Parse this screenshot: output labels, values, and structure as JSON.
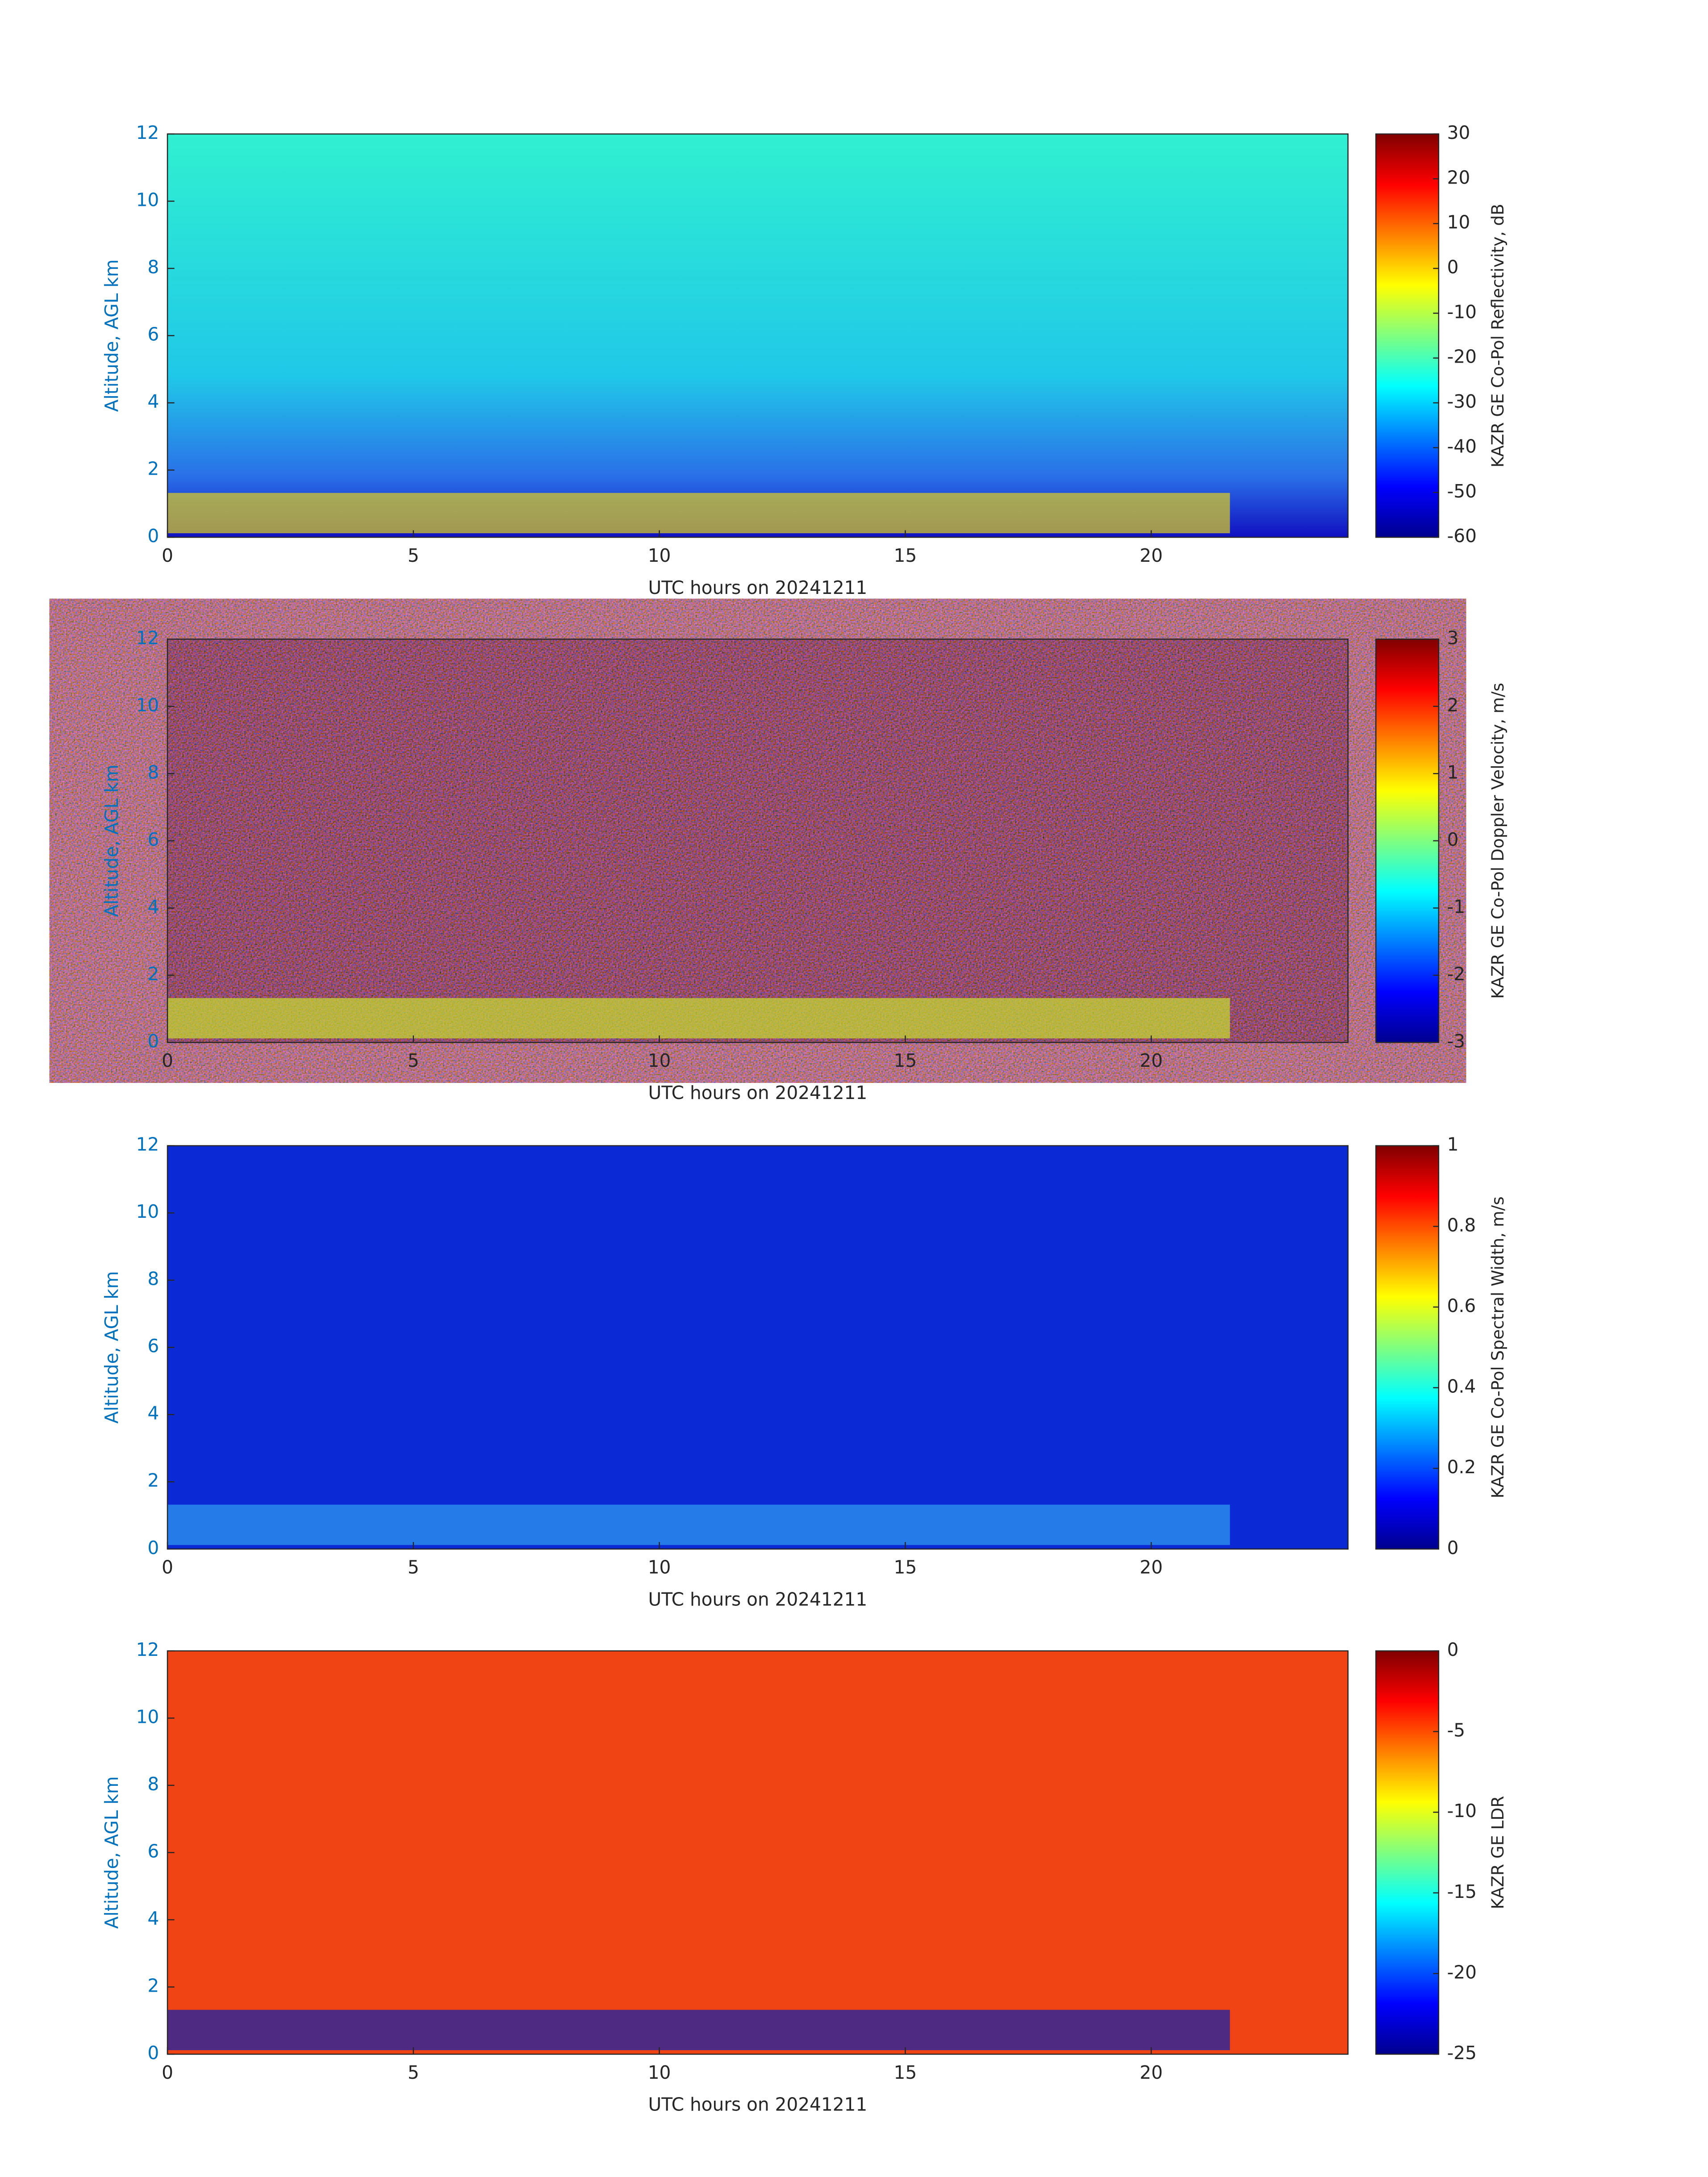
{
  "chart_data": [
    {
      "type": "heatmap",
      "xlabel": "UTC hours on 20241211",
      "ylabel": "Altitude, AGL km",
      "colorbar_label": "KAZR GE Co-Pol Reflectivity, dB",
      "xlim": [
        0,
        24
      ],
      "xticks": [
        0,
        5,
        10,
        15,
        20
      ],
      "ylim": [
        0,
        12
      ],
      "yticks": [
        0,
        2,
        4,
        6,
        8,
        10,
        12
      ],
      "clim": [
        -60,
        30
      ],
      "cticks": [
        -60,
        -50,
        -40,
        -30,
        -20,
        -10,
        0,
        10,
        20,
        30
      ],
      "colormap": "jet"
    },
    {
      "type": "heatmap",
      "xlabel": "UTC hours on 20241211",
      "ylabel": "Altitude, AGL km",
      "colorbar_label": "KAZR GE Co-Pol Doppler Velocity, m/s",
      "xlim": [
        0,
        24
      ],
      "xticks": [
        0,
        5,
        10,
        15,
        20
      ],
      "ylim": [
        0,
        12
      ],
      "yticks": [
        0,
        2,
        4,
        6,
        8,
        10,
        12
      ],
      "clim": [
        -3,
        3
      ],
      "cticks": [
        -3,
        -2,
        -1,
        0,
        1,
        2,
        3
      ],
      "colormap": "jet"
    },
    {
      "type": "heatmap",
      "xlabel": "UTC hours on 20241211",
      "ylabel": "Altitude, AGL km",
      "colorbar_label": "KAZR GE Co-Pol Spectral Width, m/s",
      "xlim": [
        0,
        24
      ],
      "xticks": [
        0,
        5,
        10,
        15,
        20
      ],
      "ylim": [
        0,
        12
      ],
      "yticks": [
        0,
        2,
        4,
        6,
        8,
        10,
        12
      ],
      "clim": [
        0,
        1
      ],
      "cticks": [
        0,
        0.2,
        0.4,
        0.6,
        0.8,
        1
      ],
      "colormap": "jet"
    },
    {
      "type": "heatmap",
      "xlabel": "UTC hours on 20241211",
      "ylabel": "Altitude, AGL km",
      "colorbar_label": "KAZR GE LDR",
      "xlim": [
        0,
        24
      ],
      "xticks": [
        0,
        5,
        10,
        15,
        20
      ],
      "ylim": [
        0,
        12
      ],
      "yticks": [
        0,
        2,
        4,
        6,
        8,
        10,
        12
      ],
      "clim": [
        -25,
        0
      ],
      "cticks": [
        -25,
        -20,
        -15,
        -10,
        -5,
        0
      ],
      "colormap": "jet"
    }
  ]
}
